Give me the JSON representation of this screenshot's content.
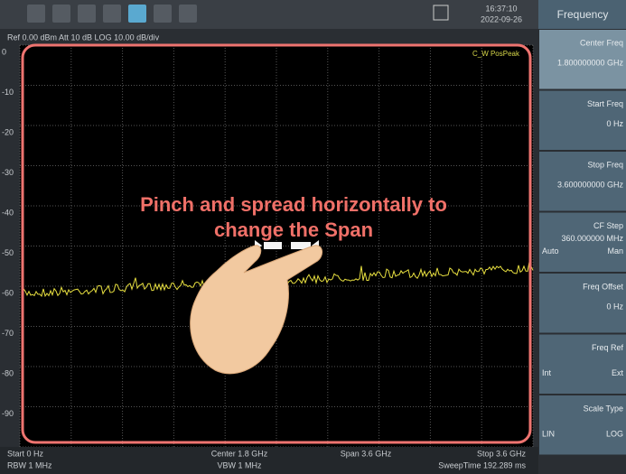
{
  "status": {
    "time": "16:37:10",
    "date": "2022-09-26"
  },
  "info": "Ref 0.00 dBm  Att 10 dB  LOG 10.00 dB/div",
  "trace_label": "C_W PosPeak",
  "y_labels": [
    "0",
    "-10",
    "-20",
    "-30",
    "-40",
    "-50",
    "-60",
    "-70",
    "-80",
    "-90"
  ],
  "overlay": {
    "line1": "Pinch and spread horizontally to",
    "line2": "change the Span"
  },
  "footer": {
    "start": "Start 0 Hz",
    "center": "Center 1.8 GHz",
    "span": "Span 3.6 GHz",
    "stop": "Stop 3.6 GHz",
    "rbw": "RBW 1 MHz",
    "vbw": "VBW 1 MHz",
    "sweep": "SweepTime 192.289 ms"
  },
  "menu": {
    "title": "Frequency",
    "items": [
      {
        "label": "Center Freq",
        "value": "1.800000000 GHz"
      },
      {
        "label": "Start Freq",
        "value": "0 Hz"
      },
      {
        "label": "Stop Freq",
        "value": "3.600000000 GHz"
      },
      {
        "label": "CF Step",
        "value": "360.000000 MHz",
        "left": "Auto",
        "right": "Man"
      },
      {
        "label": "Freq Offset",
        "value": "0 Hz"
      },
      {
        "label": "Freq Ref",
        "left": "Int",
        "right": "Ext"
      },
      {
        "label": "Scale Type",
        "left": "LIN",
        "right": "LOG"
      }
    ]
  }
}
